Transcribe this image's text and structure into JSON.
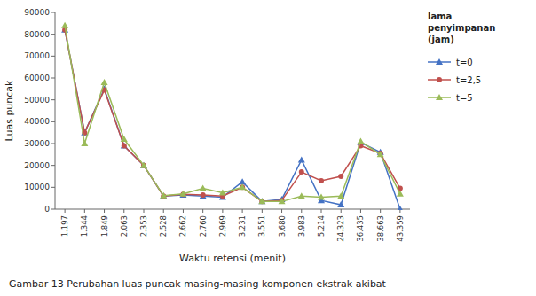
{
  "chart_data": {
    "type": "line",
    "xlabel": "Waktu retensi (menit)",
    "ylabel": "Luas puncak",
    "legend_title": "lama\npenyimpanan\n(jam)",
    "annotations": [
      "Gambar 13  Perubahan luas puncak masing-masing komponen ekstrak akibat"
    ],
    "categories": [
      "1.197",
      "1.344",
      "1.849",
      "2.063",
      "2.353",
      "2.528",
      "2.662",
      "2.760",
      "2.969",
      "3.231",
      "3.551",
      "3.680",
      "3.983",
      "5.214",
      "24.323",
      "36.435",
      "38.663",
      "43.359"
    ],
    "series": [
      {
        "name": "t=0",
        "color": "#4472C4",
        "marker": "triangle",
        "values": [
          82000,
          35000,
          55000,
          29000,
          20000,
          6000,
          6500,
          6000,
          5500,
          12500,
          3500,
          4500,
          22500,
          4000,
          2000,
          30500,
          26000,
          0
        ]
      },
      {
        "name": "t=2,5",
        "color": "#C0504D",
        "marker": "circle",
        "values": [
          82000,
          35000,
          54500,
          29000,
          20000,
          6000,
          6800,
          6500,
          6000,
          10000,
          3500,
          4000,
          17000,
          13000,
          15000,
          29000,
          25500,
          9500
        ]
      },
      {
        "name": "t=5",
        "color": "#9BBB59",
        "marker": "triangle",
        "values": [
          84000,
          30000,
          58000,
          32000,
          20000,
          6200,
          7000,
          9500,
          7500,
          10000,
          3500,
          3500,
          6000,
          5500,
          6000,
          31000,
          25000,
          7000
        ]
      }
    ],
    "ylim": [
      0,
      90000
    ],
    "yticks": [
      0,
      10000,
      20000,
      30000,
      40000,
      50000,
      60000,
      70000,
      80000,
      90000
    ],
    "grid": false,
    "legend": "right"
  }
}
